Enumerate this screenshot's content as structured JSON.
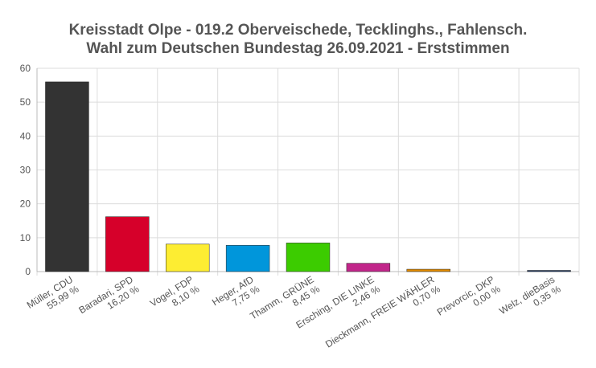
{
  "chart_data": {
    "type": "bar",
    "title": "Kreisstadt Olpe - 019.2 Oberveischede, Tecklinghs., Fahlensch.",
    "subtitle": "Wahl zum Deutschen Bundestag 26.09.2021  - Erststimmen",
    "xlabel": "",
    "ylabel": "",
    "ylim": [
      0,
      60
    ],
    "yticks": [
      0,
      10,
      20,
      30,
      40,
      50,
      60
    ],
    "grid": true,
    "categories": [
      "Müller, CDU",
      "Baradari, SPD",
      "Vogel, FDP",
      "Heger, AfD",
      "Thamm, GRÜNE",
      "Ersching, DIE LINKE",
      "Dieckmann, FREIE WÄHLER",
      "Prevorcic, DKP",
      "Welz, dieBasis"
    ],
    "value_labels": [
      "55,99 %",
      "16,20 %",
      "8,10 %",
      "7,75 %",
      "8,45 %",
      "2,46 %",
      "0,70 %",
      "0,00 %",
      "0,35 %"
    ],
    "values": [
      55.99,
      16.2,
      8.1,
      7.75,
      8.45,
      2.46,
      0.7,
      0.0,
      0.35
    ],
    "colors": [
      "#333333",
      "#d6002a",
      "#fded32",
      "#0096db",
      "#3ccc00",
      "#c1268a",
      "#e08a00",
      "#8a3412",
      "#1f3a64"
    ]
  }
}
